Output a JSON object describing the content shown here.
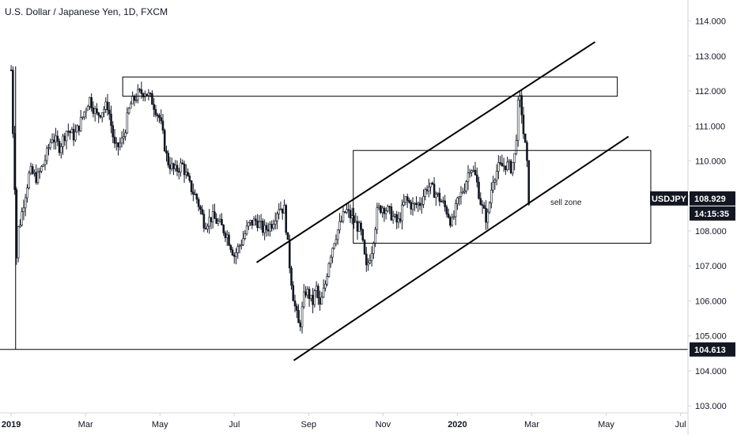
{
  "header": {
    "title": "U.S. Dollar / Japanese Yen, 1D, FXCM"
  },
  "colors": {
    "candle": "#131722",
    "line": "#000000",
    "axis_text": "#131722",
    "price_badge_bg": "#131722",
    "price_badge_text": "#ffffff"
  },
  "chart_data": {
    "type": "candlestick",
    "title": "U.S. Dollar / Japanese Yen, 1D, FXCM",
    "symbol": "USDJPY",
    "current_price": "108.929",
    "countdown": "14:15:35",
    "support_level": "104.613",
    "x_ticks": [
      {
        "label": "2019",
        "t": 0
      },
      {
        "label": "Mar",
        "t": 2
      },
      {
        "label": "May",
        "t": 4
      },
      {
        "label": "Jul",
        "t": 6
      },
      {
        "label": "Sep",
        "t": 8
      },
      {
        "label": "Nov",
        "t": 10
      },
      {
        "label": "2020",
        "t": 12
      },
      {
        "label": "Mar",
        "t": 14
      },
      {
        "label": "May",
        "t": 16
      },
      {
        "label": "Jul",
        "t": 18
      }
    ],
    "y_ticks": [
      "103.000",
      "104.000",
      "105.000",
      "106.000",
      "107.000",
      "108.000",
      "109.000",
      "110.000",
      "111.000",
      "112.000",
      "113.000",
      "114.000"
    ],
    "price_path": [
      [
        0.0,
        112.6
      ],
      [
        0.05,
        110.8
      ],
      [
        0.1,
        109.2
      ],
      [
        0.12,
        104.7
      ],
      [
        0.15,
        107.9
      ],
      [
        0.25,
        108.3
      ],
      [
        0.35,
        108.9
      ],
      [
        0.5,
        109.7
      ],
      [
        0.7,
        109.5
      ],
      [
        0.9,
        110.0
      ],
      [
        1.1,
        110.7
      ],
      [
        1.3,
        110.4
      ],
      [
        1.5,
        110.9
      ],
      [
        1.7,
        110.7
      ],
      [
        1.9,
        111.2
      ],
      [
        2.1,
        111.8
      ],
      [
        2.3,
        111.3
      ],
      [
        2.6,
        111.6
      ],
      [
        2.8,
        110.3
      ],
      [
        3.0,
        110.6
      ],
      [
        3.2,
        111.6
      ],
      [
        3.4,
        111.9
      ],
      [
        3.6,
        112.0
      ],
      [
        3.8,
        111.7
      ],
      [
        4.0,
        111.2
      ],
      [
        4.2,
        110.0
      ],
      [
        4.4,
        109.7
      ],
      [
        4.6,
        109.9
      ],
      [
        4.8,
        109.3
      ],
      [
        5.0,
        108.9
      ],
      [
        5.2,
        108.2
      ],
      [
        5.4,
        108.4
      ],
      [
        5.6,
        108.2
      ],
      [
        5.8,
        107.9
      ],
      [
        6.0,
        107.3
      ],
      [
        6.2,
        107.7
      ],
      [
        6.4,
        108.2
      ],
      [
        6.6,
        108.3
      ],
      [
        6.8,
        108.0
      ],
      [
        7.0,
        108.2
      ],
      [
        7.2,
        108.7
      ],
      [
        7.35,
        108.6
      ],
      [
        7.5,
        106.9
      ],
      [
        7.6,
        106.0
      ],
      [
        7.75,
        105.2
      ],
      [
        7.9,
        106.3
      ],
      [
        8.0,
        106.2
      ],
      [
        8.1,
        105.9
      ],
      [
        8.2,
        106.4
      ],
      [
        8.3,
        105.8
      ],
      [
        8.45,
        106.5
      ],
      [
        8.55,
        107.2
      ],
      [
        8.7,
        107.8
      ],
      [
        8.85,
        108.2
      ],
      [
        9.0,
        108.6
      ],
      [
        9.2,
        108.3
      ],
      [
        9.4,
        108.0
      ],
      [
        9.55,
        106.9
      ],
      [
        9.7,
        107.5
      ],
      [
        9.85,
        108.6
      ],
      [
        10.0,
        108.7
      ],
      [
        10.2,
        108.5
      ],
      [
        10.4,
        108.2
      ],
      [
        10.6,
        108.9
      ],
      [
        10.8,
        108.7
      ],
      [
        11.0,
        108.8
      ],
      [
        11.2,
        109.3
      ],
      [
        11.4,
        109.1
      ],
      [
        11.6,
        108.8
      ],
      [
        11.75,
        108.5
      ],
      [
        11.85,
        108.2
      ],
      [
        12.0,
        108.8
      ],
      [
        12.2,
        109.3
      ],
      [
        12.35,
        109.9
      ],
      [
        12.5,
        109.5
      ],
      [
        12.65,
        108.7
      ],
      [
        12.8,
        108.3
      ],
      [
        12.95,
        109.5
      ],
      [
        13.1,
        109.8
      ],
      [
        13.3,
        109.9
      ],
      [
        13.45,
        109.8
      ],
      [
        13.55,
        110.2
      ],
      [
        13.6,
        111.0
      ],
      [
        13.65,
        111.9
      ],
      [
        13.72,
        111.5
      ],
      [
        13.8,
        110.5
      ],
      [
        13.85,
        110.3
      ],
      [
        13.92,
        108.9
      ]
    ],
    "shapes": {
      "resistance_zone": {
        "t1": 3.0,
        "t2": 16.3,
        "p1": 111.85,
        "p2": 112.4
      },
      "sell_zone": {
        "t1": 9.2,
        "t2": 17.2,
        "p1": 107.65,
        "p2": 110.3,
        "label": "sell zone"
      },
      "channel_upper": {
        "t1": 6.6,
        "p1": 107.1,
        "t2": 15.7,
        "p2": 113.4
      },
      "channel_lower": {
        "t1": 7.6,
        "p1": 104.3,
        "t2": 16.6,
        "p2": 110.7
      },
      "support_line": {
        "p": 104.613
      },
      "support_vertical": {
        "t": 0.12,
        "p1": 104.613,
        "p2": 112.7
      }
    },
    "y_range": [
      102.8,
      114.6
    ],
    "t_range": [
      -0.3,
      18.2
    ]
  }
}
